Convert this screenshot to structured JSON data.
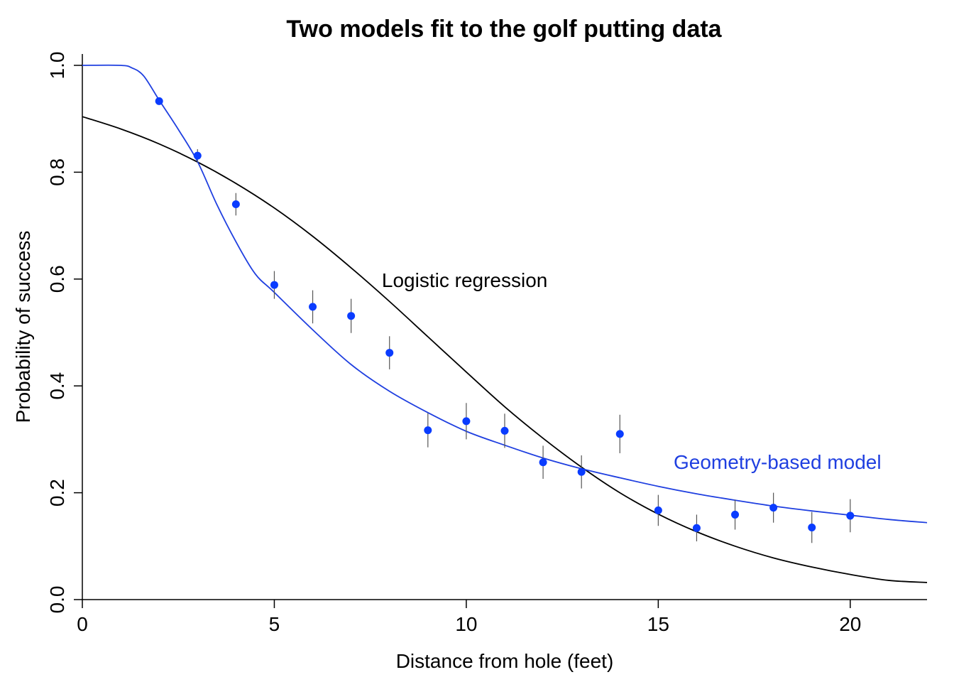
{
  "chart_data": {
    "type": "scatter",
    "title": "Two models fit to the golf putting data",
    "xlabel": "Distance from hole (feet)",
    "ylabel": "Probability of success",
    "xlim": [
      0,
      22
    ],
    "ylim": [
      0,
      1
    ],
    "x_ticks": [
      "0",
      "5",
      "10",
      "15",
      "20"
    ],
    "y_ticks": [
      "0.0",
      "0.2",
      "0.4",
      "0.6",
      "0.8",
      "1.0"
    ],
    "grid": false,
    "legend": "none",
    "colors": {
      "points": "#0a3cff",
      "geometry_curve": "#1f3fe0",
      "logistic_curve": "#000000",
      "error_bars": "#555555"
    },
    "points": {
      "x": [
        2,
        3,
        4,
        5,
        6,
        7,
        8,
        9,
        10,
        11,
        12,
        13,
        14,
        15,
        16,
        17,
        18,
        19,
        20
      ],
      "y": [
        0.933,
        0.831,
        0.74,
        0.589,
        0.548,
        0.531,
        0.462,
        0.317,
        0.334,
        0.316,
        0.257,
        0.239,
        0.31,
        0.167,
        0.134,
        0.159,
        0.172,
        0.135,
        0.157
      ],
      "se": [
        0.003,
        0.012,
        0.021,
        0.026,
        0.031,
        0.032,
        0.031,
        0.032,
        0.034,
        0.032,
        0.031,
        0.031,
        0.036,
        0.029,
        0.025,
        0.028,
        0.028,
        0.029,
        0.031
      ]
    },
    "series": [
      {
        "name": "Logistic regression",
        "x": [
          0,
          1,
          2,
          3,
          4,
          5,
          6,
          7,
          8,
          9,
          10,
          11,
          12,
          13,
          14,
          15,
          16,
          17,
          18,
          19,
          20,
          21,
          22
        ],
        "y": [
          0.904,
          0.881,
          0.853,
          0.819,
          0.779,
          0.733,
          0.68,
          0.621,
          0.558,
          0.492,
          0.426,
          0.361,
          0.302,
          0.248,
          0.2,
          0.16,
          0.127,
          0.1,
          0.078,
          0.061,
          0.047,
          0.036,
          0.032
        ]
      },
      {
        "name": "Geometry-based model",
        "x": [
          0,
          1.0,
          1.3,
          1.6,
          2.0,
          2.5,
          3.0,
          3.5,
          4.0,
          4.5,
          5.0,
          6.0,
          7.0,
          8.0,
          9.0,
          10,
          11,
          12,
          13,
          14,
          15,
          16,
          17,
          18,
          19,
          20,
          21,
          22
        ],
        "y": [
          1.0,
          1.0,
          0.995,
          0.98,
          0.935,
          0.88,
          0.82,
          0.74,
          0.67,
          0.61,
          0.575,
          0.505,
          0.44,
          0.39,
          0.35,
          0.315,
          0.289,
          0.265,
          0.245,
          0.228,
          0.212,
          0.198,
          0.186,
          0.175,
          0.166,
          0.158,
          0.15,
          0.144
        ]
      }
    ],
    "annotations": [
      {
        "text": "Logistic regression",
        "x": 7.8,
        "y": 0.585,
        "color": "#000000"
      },
      {
        "text": "Geometry-based model",
        "x": 15.4,
        "y": 0.245,
        "color": "#1f3fe0"
      }
    ]
  }
}
